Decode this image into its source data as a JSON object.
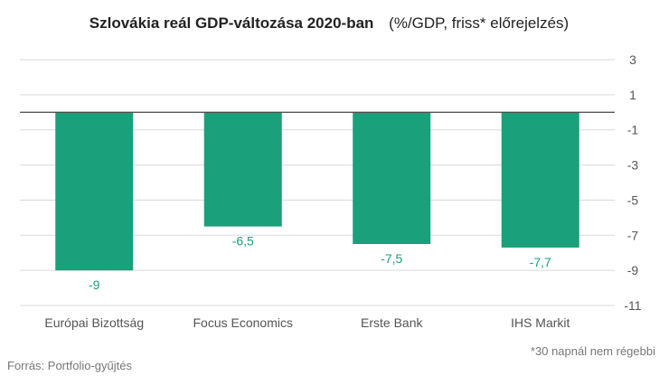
{
  "chart_data": {
    "type": "bar",
    "title": "Szlovákia reál GDP-változása 2020-ban",
    "subtitle": "(%/GDP, friss* előrejelzés)",
    "categories": [
      "Európai Bizottság",
      "Focus Economics",
      "Erste Bank",
      "IHS Markit"
    ],
    "values": [
      -9,
      -6.5,
      -7.5,
      -7.7
    ],
    "data_labels": [
      "-9",
      "-6,5",
      "-7,5",
      "-7,7"
    ],
    "y_ticks": [
      3,
      1,
      -1,
      -3,
      -5,
      -7,
      -9,
      -11
    ],
    "ylim": [
      -11,
      3
    ],
    "y_axis_position": "right",
    "grid": true,
    "bar_color": "#1aa07a",
    "grid_color": "#d9d9d9",
    "zero_line_color": "#444444"
  },
  "source": "Forrás: Portfolio-gyűjtés",
  "footnote": "*30 napnál nem régebbi"
}
